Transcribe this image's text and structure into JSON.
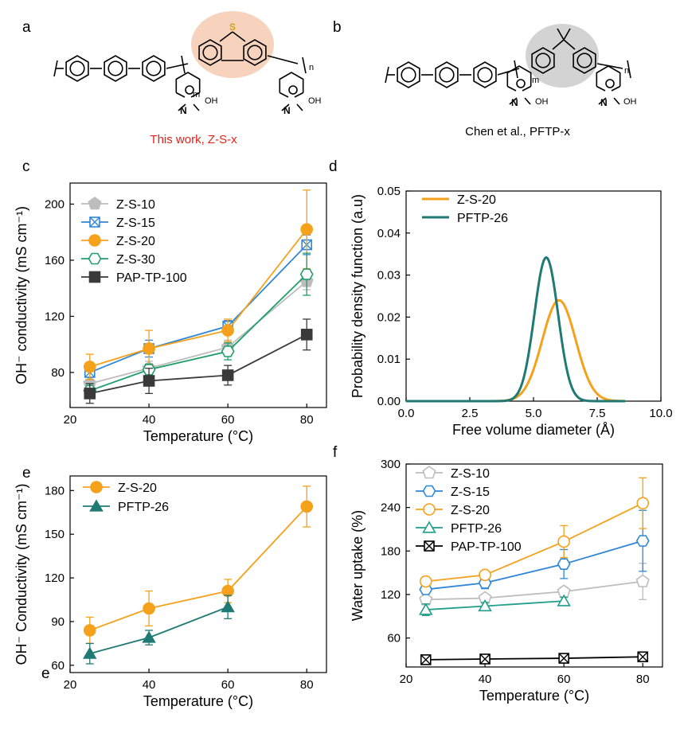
{
  "panels": {
    "a": "a",
    "b": "b",
    "c": "c",
    "d": "d",
    "e": "e",
    "f": "f",
    "e_extra": "e"
  },
  "structures": {
    "a_caption": "This work, Z-S-x",
    "b_caption": "Chen et al., PFTP-x",
    "m": "m",
    "n": "n",
    "oh": "OH",
    "n_atom": "N",
    "s_atom": "S"
  },
  "colors": {
    "zs10": "#bdbdbd",
    "zs15": "#2e86d6",
    "zs20": "#f5a11c",
    "zs30": "#1f9e6b",
    "pap": "#3a3a3a",
    "pftp": "#1f7a74",
    "highlight_a": "#f7d3bd",
    "highlight_b": "#d3d3d3",
    "caption_a": "#e8201c"
  },
  "chart_data": [
    {
      "id": "c",
      "type": "line",
      "xlabel": "Temperature (°C)",
      "ylabel": "OH⁻ conductivity (mS cm⁻¹)",
      "xlim": [
        20,
        85
      ],
      "ylim": [
        55,
        215
      ],
      "xticks": [
        20,
        40,
        60,
        80
      ],
      "yticks": [
        80,
        120,
        160,
        200
      ],
      "x": [
        25,
        40,
        60,
        80
      ],
      "legend_position": "top-left",
      "series": [
        {
          "name": "Z-S-10",
          "marker": "pentagon-filled",
          "color": "#bdbdbd",
          "values": [
            72,
            83,
            98,
            145
          ],
          "err": [
            5,
            5,
            5,
            6
          ]
        },
        {
          "name": "Z-S-15",
          "marker": "square-cross",
          "color": "#2e86d6",
          "values": [
            80,
            97,
            113,
            171
          ],
          "err": [
            5,
            6,
            4,
            7
          ]
        },
        {
          "name": "Z-S-20",
          "marker": "circle-filled",
          "color": "#f5a11c",
          "values": [
            84,
            97,
            110,
            182
          ],
          "err": [
            9,
            13,
            8,
            28
          ]
        },
        {
          "name": "Z-S-30",
          "marker": "hexagon-open",
          "color": "#1f9e6b",
          "values": [
            67,
            82,
            95,
            150
          ],
          "err": [
            5,
            4,
            6,
            15
          ]
        },
        {
          "name": "PAP-TP-100",
          "marker": "square-filled",
          "color": "#3a3a3a",
          "values": [
            65,
            74,
            78,
            107
          ],
          "err": [
            7,
            9,
            7,
            11
          ]
        }
      ]
    },
    {
      "id": "d",
      "type": "line",
      "xlabel": "Free volume diameter (Å)",
      "ylabel": "Probability density function (a.u)",
      "xlim": [
        0,
        10
      ],
      "ylim": [
        0,
        0.05
      ],
      "xticks": [
        0.0,
        2.5,
        5.0,
        7.5,
        10.0
      ],
      "xtick_labels": [
        "0.0",
        "2.5",
        "5.0",
        "7.5",
        "10.0"
      ],
      "yticks": [
        0.0,
        0.01,
        0.02,
        0.03,
        0.04,
        0.05
      ],
      "ytick_labels": [
        "0.00",
        "0.01",
        "0.02",
        "0.03",
        "0.04",
        "0.05"
      ],
      "legend_position": "top-left",
      "series": [
        {
          "name": "Z-S-20",
          "color": "#f5a11c",
          "peak_x": 6.0,
          "peak_y": 0.024,
          "width": 0.82
        },
        {
          "name": "PFTP-26",
          "color": "#1f7a74",
          "peak_x": 5.5,
          "peak_y": 0.0342,
          "width": 0.58
        }
      ]
    },
    {
      "id": "e",
      "type": "line",
      "xlabel": "Temperature (°C)",
      "ylabel": "OH⁻ Conductivity (mS cm⁻¹)",
      "xlim": [
        20,
        85
      ],
      "ylim": [
        55,
        190
      ],
      "xticks": [
        20,
        40,
        60,
        80
      ],
      "yticks": [
        60,
        90,
        120,
        150,
        180
      ],
      "legend_position": "top-left",
      "series": [
        {
          "name": "Z-S-20",
          "marker": "circle-filled",
          "color": "#f5a11c",
          "x": [
            25,
            40,
            60,
            80
          ],
          "values": [
            84,
            99,
            111,
            169
          ],
          "err": [
            9,
            12,
            8,
            14
          ]
        },
        {
          "name": "PFTP-26",
          "marker": "triangle-filled",
          "color": "#1f7a74",
          "x": [
            25,
            40,
            60
          ],
          "values": [
            68,
            79,
            100
          ],
          "err": [
            7,
            5,
            8
          ]
        }
      ]
    },
    {
      "id": "f",
      "type": "line",
      "xlabel": "Temperature (°C)",
      "ylabel": "Water uptake (%)",
      "xlim": [
        20,
        85
      ],
      "ylim": [
        20,
        300
      ],
      "xticks": [
        20,
        40,
        60,
        80
      ],
      "yticks": [
        60,
        120,
        180,
        240,
        300
      ],
      "legend_position": "top-left",
      "series": [
        {
          "name": "Z-S-10",
          "marker": "pentagon-open",
          "color": "#bdbdbd",
          "x": [
            25,
            40,
            60,
            80
          ],
          "values": [
            113,
            115,
            124,
            138
          ],
          "err": [
            5,
            5,
            6,
            25
          ]
        },
        {
          "name": "Z-S-15",
          "marker": "hexagon-open",
          "color": "#2e86d6",
          "x": [
            25,
            40,
            60,
            80
          ],
          "values": [
            127,
            136,
            162,
            194
          ],
          "err": [
            6,
            8,
            20,
            42
          ]
        },
        {
          "name": "Z-S-20",
          "marker": "circle-open",
          "color": "#f5a11c",
          "x": [
            25,
            40,
            60,
            80
          ],
          "values": [
            138,
            147,
            193,
            246
          ],
          "err": [
            5,
            4,
            22,
            35
          ]
        },
        {
          "name": "PFTP-26",
          "marker": "triangle-open",
          "color": "#1f9e8a",
          "x": [
            25,
            40,
            60
          ],
          "values": [
            99,
            104,
            111
          ],
          "err": [
            8,
            5,
            5
          ]
        },
        {
          "name": "PAP-TP-100",
          "marker": "square-cross",
          "color": "#000000",
          "x": [
            25,
            40,
            60,
            80
          ],
          "values": [
            30,
            31,
            32,
            34
          ],
          "err": [
            3,
            3,
            3,
            3
          ]
        }
      ]
    }
  ]
}
